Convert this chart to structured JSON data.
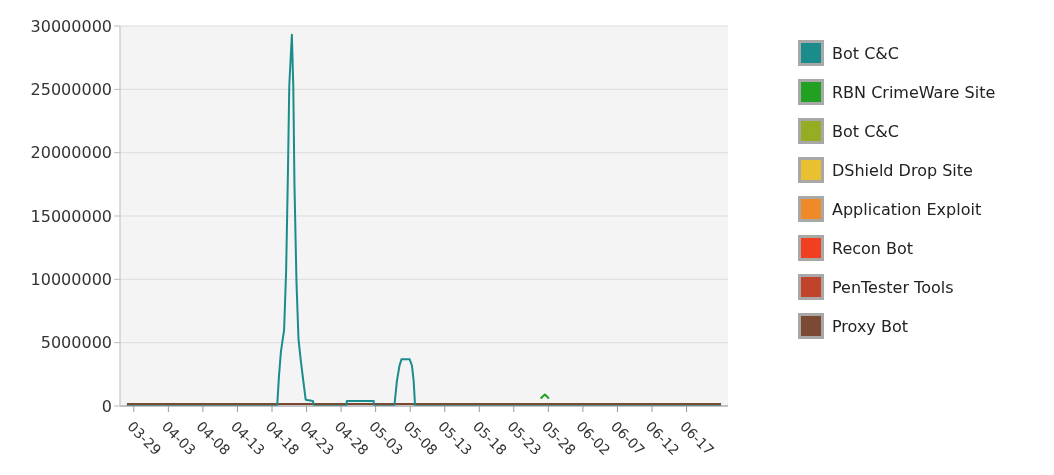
{
  "chart_data": {
    "type": "line",
    "marker": "none",
    "grid": "y",
    "legend": "right",
    "xlim": [
      "--03-27",
      "--06-23"
    ],
    "xticks": [
      {
        "value": "--03-29",
        "label": "03-29"
      },
      {
        "value": "--04-03",
        "label": "04-03"
      },
      {
        "value": "--04-08",
        "label": "04-08"
      },
      {
        "value": "--04-13",
        "label": "04-13"
      },
      {
        "value": "--04-18",
        "label": "04-18"
      },
      {
        "value": "--04-23",
        "label": "04-23"
      },
      {
        "value": "--04-28",
        "label": "04-28"
      },
      {
        "value": "--05-03",
        "label": "05-03"
      },
      {
        "value": "--05-08",
        "label": "05-08"
      },
      {
        "value": "--05-13",
        "label": "05-13"
      },
      {
        "value": "--05-18",
        "label": "05-18"
      },
      {
        "value": "--05-23",
        "label": "05-23"
      },
      {
        "value": "--05-28",
        "label": "05-28"
      },
      {
        "value": "--06-02",
        "label": "06-02"
      },
      {
        "value": "--06-07",
        "label": "06-07"
      },
      {
        "value": "--06-12",
        "label": "06-12"
      },
      {
        "value": "--06-17",
        "label": "06-17"
      }
    ],
    "ylim": [
      0,
      30000000
    ],
    "yticks": [
      0,
      5000000,
      10000000,
      15000000,
      20000000,
      25000000,
      30000000
    ],
    "series": [
      {
        "name": "Bot C&C",
        "color": "#1a8c8c",
        "x": [
          "--03-28",
          "--04-18T18:00",
          "--04-19T00:00",
          "--04-19T07:00",
          "--04-19T18:00",
          "--04-20T01:00",
          "--04-20T07:00",
          "--04-20T12:00",
          "--04-20T21:00",
          "--04-21T02:00",
          "--04-21T06:00",
          "--04-21T13:00",
          "--04-21T20:00",
          "--04-22T03:00",
          "--04-22T11:00",
          "--04-22T21:00",
          "--04-23T22:00",
          "--04-24T02:00",
          "--04-28T18:00",
          "--04-28T20:00",
          "--05-02T17:00",
          "--05-02T19:00",
          "--05-05T17:00",
          "--05-06T02:00",
          "--05-06T11:00",
          "--05-06T18:00",
          "--05-07T22:00",
          "--05-08T06:00",
          "--05-08T12:00",
          "--05-08T17:00",
          "--06-22"
        ],
        "values": [
          0,
          0,
          2300000,
          4300000,
          6000000,
          10600000,
          18000000,
          25300000,
          29300000,
          25200000,
          17500000,
          9800000,
          5300000,
          3800000,
          2300000,
          500000,
          400000,
          0,
          0,
          400000,
          400000,
          0,
          0,
          2000000,
          3200000,
          3700000,
          3700000,
          3200000,
          2000000,
          0,
          0
        ]
      },
      {
        "name": "RBN CrimeWare Site",
        "color": "#22a022",
        "x": [
          "--05-26T21:00",
          "--05-27T12:00",
          "--05-28T02:00"
        ],
        "values": [
          600000,
          900000,
          600000
        ]
      },
      {
        "name": "Bot C&C",
        "color": "#94ad22"
      },
      {
        "name": "DShield Drop Site",
        "color": "#e8c030"
      },
      {
        "name": "Application Exploit",
        "color": "#f08a28"
      },
      {
        "name": "Recon Bot",
        "color": "#f04020"
      },
      {
        "name": "PenTester Tools",
        "color": "#c0442c"
      },
      {
        "name": "Proxy Bot",
        "color": "#7a4a35",
        "x": [
          "--03-28",
          "--06-22"
        ],
        "values": [
          150000,
          150000
        ]
      }
    ]
  }
}
